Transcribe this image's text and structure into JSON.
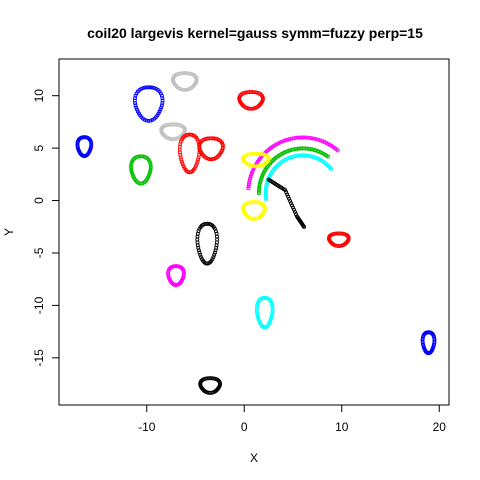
{
  "chart_data": {
    "type": "scatter",
    "title": "coil20 largevis kernel=gauss symm=fuzzy perp=15",
    "xlabel": "X",
    "ylabel": "Y",
    "xlim": [
      -19,
      21
    ],
    "ylim": [
      -19.5,
      13.5
    ],
    "xticks": [
      "-10",
      "0",
      "10",
      "20"
    ],
    "xtick_values": [
      -10,
      0,
      10,
      20
    ],
    "yticks": [
      "-15",
      "-10",
      "-5",
      "0",
      "5",
      "10"
    ],
    "ytick_values": [
      -15,
      -10,
      -5,
      0,
      5,
      10
    ],
    "grid": false,
    "legend": "none",
    "clusters": [
      {
        "color": "#0000FF",
        "shape": "loop",
        "cx": -9.8,
        "cy": 9.3,
        "rx": 1.4,
        "ry": 1.6
      },
      {
        "color": "#0000FF",
        "shape": "loop",
        "cx": -16.4,
        "cy": 5.2,
        "rx": 0.7,
        "ry": 0.9
      },
      {
        "color": "#0000FF",
        "shape": "loop",
        "cx": 18.9,
        "cy": -13.5,
        "rx": 0.6,
        "ry": 1.0
      },
      {
        "color": "#C0C0C0",
        "shape": "loop",
        "cx": -6.1,
        "cy": 11.4,
        "rx": 1.2,
        "ry": 0.8
      },
      {
        "color": "#C0C0C0",
        "shape": "loop",
        "cx": -7.3,
        "cy": 6.6,
        "rx": 1.2,
        "ry": 0.7
      },
      {
        "color": "#FF0000",
        "shape": "loop",
        "cx": 0.7,
        "cy": 9.6,
        "rx": 1.2,
        "ry": 0.8
      },
      {
        "color": "#FF0000",
        "shape": "loop",
        "cx": -5.6,
        "cy": 4.6,
        "rx": 1.0,
        "ry": 1.8
      },
      {
        "color": "#FF0000",
        "shape": "loop",
        "cx": -3.4,
        "cy": 5.0,
        "rx": 1.2,
        "ry": 1.0
      },
      {
        "color": "#FF0000",
        "shape": "loop",
        "cx": 9.7,
        "cy": -3.7,
        "rx": 1.0,
        "ry": 0.6
      },
      {
        "color": "#00C000",
        "shape": "loop",
        "cx": -10.6,
        "cy": 3.0,
        "rx": 1.0,
        "ry": 1.3
      },
      {
        "color": "#00C000",
        "shape": "arc",
        "cx": 6.0,
        "cy": 0.7,
        "r": 4.5,
        "a0": 180,
        "a1": 305
      },
      {
        "color": "#FF00FF",
        "shape": "arc",
        "cx": 6.0,
        "cy": 0.7,
        "r": 5.6,
        "a0": 185,
        "a1": 310
      },
      {
        "color": "#FF00FF",
        "shape": "loop",
        "cx": -7.0,
        "cy": -7.1,
        "rx": 0.8,
        "ry": 0.9
      },
      {
        "color": "#00FFFF",
        "shape": "arc",
        "cx": 6.0,
        "cy": 0.7,
        "r": 3.8,
        "a0": 170,
        "a1": 320
      },
      {
        "color": "#00FFFF",
        "shape": "loop",
        "cx": 2.1,
        "cy": -10.6,
        "rx": 0.8,
        "ry": 1.4
      },
      {
        "color": "#FFFF00",
        "shape": "loop",
        "cx": 1.2,
        "cy": 3.9,
        "rx": 1.3,
        "ry": 0.6
      },
      {
        "color": "#FFFF00",
        "shape": "loop",
        "cx": 1.0,
        "cy": -0.9,
        "rx": 1.1,
        "ry": 0.8
      },
      {
        "color": "#000000",
        "shape": "loop",
        "cx": -3.8,
        "cy": -4.0,
        "rx": 1.0,
        "ry": 1.9
      },
      {
        "color": "#000000",
        "shape": "loop",
        "cx": -3.5,
        "cy": -17.6,
        "rx": 1.0,
        "ry": 0.7
      },
      {
        "color": "#000000",
        "shape": "curve",
        "points": [
          [
            2.5,
            2.0
          ],
          [
            4.2,
            1.0
          ],
          [
            5.4,
            -1.5
          ],
          [
            6.2,
            -2.6
          ]
        ]
      }
    ]
  }
}
